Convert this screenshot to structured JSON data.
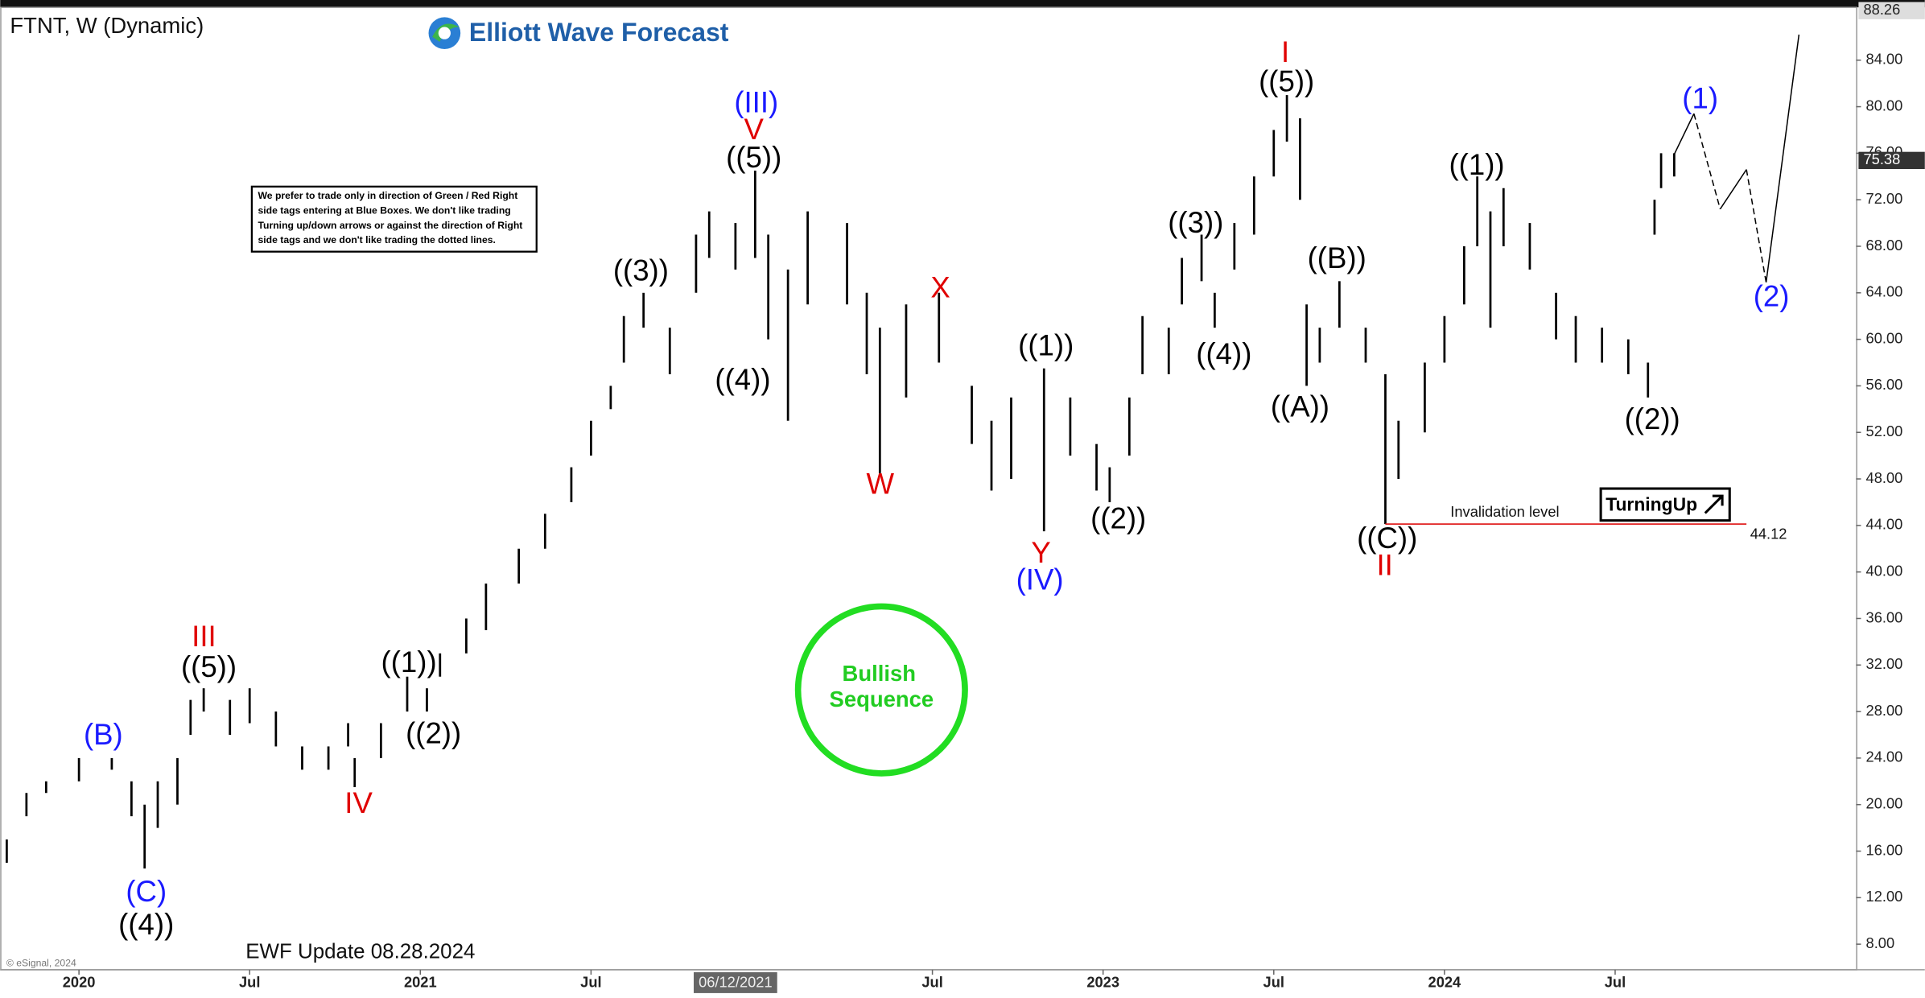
{
  "chart_data": {
    "type": "range",
    "title": "FTNT, W (Dynamic)",
    "brand": "Elliott Wave Forecast",
    "note": [
      "We prefer to trade only in direction of Green / Red Right",
      "side tags entering at Blue Boxes. We don't like trading",
      "Turning up/down arrows or against the direction of Right",
      "side tags and we don't like trading the dotted lines."
    ],
    "badge": [
      "Bullish",
      "Sequence"
    ],
    "update": "EWF Update 08.28.2024",
    "source": "© eSignal, 2024",
    "signal": "TurningUp",
    "color": "#000000",
    "x": [
      -11,
      -8,
      -5,
      0,
      5,
      8,
      10,
      12,
      15,
      17,
      19,
      23,
      26,
      30,
      34,
      38,
      41,
      42,
      46,
      50,
      53,
      55,
      59,
      62,
      67,
      71,
      75,
      78,
      81,
      83,
      86,
      90,
      94,
      96,
      100,
      103,
      105,
      108,
      111,
      117,
      120,
      122,
      126,
      131,
      136,
      139,
      142,
      147,
      151,
      155,
      157,
      160,
      162,
      166,
      168,
      171,
      173,
      176,
      179,
      182,
      184,
      186,
      187,
      189,
      192,
      196,
      199,
      201,
      205,
      208,
      211,
      213,
      215,
      217,
      221,
      225,
      228,
      232,
      236,
      239,
      240,
      241,
      243
    ],
    "high": [
      17,
      21,
      22,
      24,
      24,
      22,
      20,
      22,
      24,
      29,
      30,
      29,
      30,
      28,
      25,
      25,
      27,
      24,
      27,
      31,
      30,
      33,
      36,
      39,
      42,
      45,
      49,
      53,
      56,
      62,
      64,
      61,
      69,
      71,
      70,
      74.5,
      69,
      66,
      71,
      70,
      64,
      61,
      63,
      64,
      56,
      53,
      55,
      57.5,
      55,
      51,
      49,
      55,
      62,
      61,
      67,
      69,
      64,
      70,
      74,
      78,
      81,
      79,
      63,
      61,
      65,
      61,
      57,
      53,
      58,
      62,
      68,
      74,
      71,
      73,
      70,
      64,
      62,
      61,
      60,
      58,
      72,
      76,
      76
    ],
    "low": [
      15,
      19,
      21,
      22,
      23,
      19,
      14.5,
      18,
      20,
      26,
      28,
      26,
      27,
      25,
      23,
      23,
      25,
      21.5,
      24,
      28,
      28,
      31,
      33,
      35,
      39,
      42,
      46,
      50,
      54,
      58,
      61,
      57,
      64,
      67,
      66,
      67,
      60,
      53,
      63,
      63,
      57,
      48.5,
      55,
      58,
      51,
      47,
      48,
      43.5,
      50,
      47,
      46,
      50,
      57,
      57,
      63,
      65,
      61,
      66,
      69,
      74,
      77,
      72,
      56,
      58,
      61,
      58,
      44.12,
      48,
      52,
      58,
      63,
      68,
      61,
      68,
      66,
      60,
      58,
      58,
      57,
      55,
      69,
      73,
      74
    ],
    "projection": {
      "x": [
        243,
        246,
        250,
        254,
        257,
        262
      ],
      "values": [
        75.9,
        79.4,
        71.2,
        74.6,
        64.9,
        86.2
      ]
    },
    "invalidation": {
      "label": "Invalidation level",
      "value": 44.12,
      "x": [
        199,
        254
      ],
      "color": "#e02020"
    },
    "price_markers": [
      {
        "value": 88.26,
        "kind": "high"
      },
      {
        "value": 75.38,
        "kind": "last"
      }
    ],
    "cursor": {
      "x": 100,
      "label": "06/12/2021"
    },
    "xlim": [
      -12,
      270.7
    ],
    "xticks": [
      {
        "value": 0,
        "label": "2020"
      },
      {
        "value": 26,
        "label": "Jul"
      },
      {
        "value": 52,
        "label": "2021"
      },
      {
        "value": 78,
        "label": "Jul"
      },
      {
        "value": 130,
        "label": "Jul"
      },
      {
        "value": 156,
        "label": "2023"
      },
      {
        "value": 182,
        "label": "Jul"
      },
      {
        "value": 208,
        "label": "2024"
      },
      {
        "value": 234,
        "label": "Jul"
      }
    ],
    "ylim": [
      5.8,
      88.54
    ],
    "yticks": [
      {
        "value": 8,
        "label": "8.00"
      },
      {
        "value": 12,
        "label": "12.00"
      },
      {
        "value": 16,
        "label": "16.00"
      },
      {
        "value": 20,
        "label": "20.00"
      },
      {
        "value": 24,
        "label": "24.00"
      },
      {
        "value": 28,
        "label": "28.00"
      },
      {
        "value": 32,
        "label": "32.00"
      },
      {
        "value": 36,
        "label": "36.00"
      },
      {
        "value": 40,
        "label": "40.00"
      },
      {
        "value": 44,
        "label": "44.00"
      },
      {
        "value": 48,
        "label": "48.00"
      },
      {
        "value": 52,
        "label": "52.00"
      },
      {
        "value": 56,
        "label": "56.00"
      },
      {
        "value": 60,
        "label": "60.00"
      },
      {
        "value": 64,
        "label": "64.00"
      },
      {
        "value": 68,
        "label": "68.00"
      },
      {
        "value": 72,
        "label": "72.00"
      },
      {
        "value": 76,
        "label": "76.00"
      },
      {
        "value": 80,
        "label": "80.00"
      },
      {
        "value": 84,
        "label": "84.00"
      }
    ],
    "wave_labels": [
      {
        "text": "(B)",
        "color": "#1a1aff"
      },
      {
        "text": "(C)",
        "color": "#1a1aff"
      },
      {
        "text": "((4))",
        "color": "#000000"
      },
      {
        "text": "III",
        "color": "#e00000"
      },
      {
        "text": "((5))",
        "color": "#000000"
      },
      {
        "text": "IV",
        "color": "#e00000"
      },
      {
        "text": "((1))",
        "color": "#000000"
      },
      {
        "text": "((2))",
        "color": "#000000"
      },
      {
        "text": "((3))",
        "color": "#000000"
      },
      {
        "text": "(III)",
        "color": "#1a1aff"
      },
      {
        "text": "V",
        "color": "#e00000"
      },
      {
        "text": "((5))",
        "color": "#000000"
      },
      {
        "text": "((4))",
        "color": "#000000"
      },
      {
        "text": "W",
        "color": "#e00000"
      },
      {
        "text": "X",
        "color": "#e00000"
      },
      {
        "text": "((1))",
        "color": "#000000"
      },
      {
        "text": "Y",
        "color": "#e00000"
      },
      {
        "text": "(IV)",
        "color": "#1a1aff"
      },
      {
        "text": "((2))",
        "color": "#000000"
      },
      {
        "text": "((3))",
        "color": "#000000"
      },
      {
        "text": "((4))",
        "color": "#000000"
      },
      {
        "text": "I",
        "color": "#e00000"
      },
      {
        "text": "((5))",
        "color": "#000000"
      },
      {
        "text": "((B))",
        "color": "#000000"
      },
      {
        "text": "((A))",
        "color": "#000000"
      },
      {
        "text": "((C))",
        "color": "#000000"
      },
      {
        "text": "II",
        "color": "#e00000"
      },
      {
        "text": "((1))",
        "color": "#000000"
      },
      {
        "text": "((2))",
        "color": "#000000"
      },
      {
        "text": "(1)",
        "color": "#1a1aff"
      },
      {
        "text": "(2)",
        "color": "#1a1aff"
      }
    ]
  }
}
